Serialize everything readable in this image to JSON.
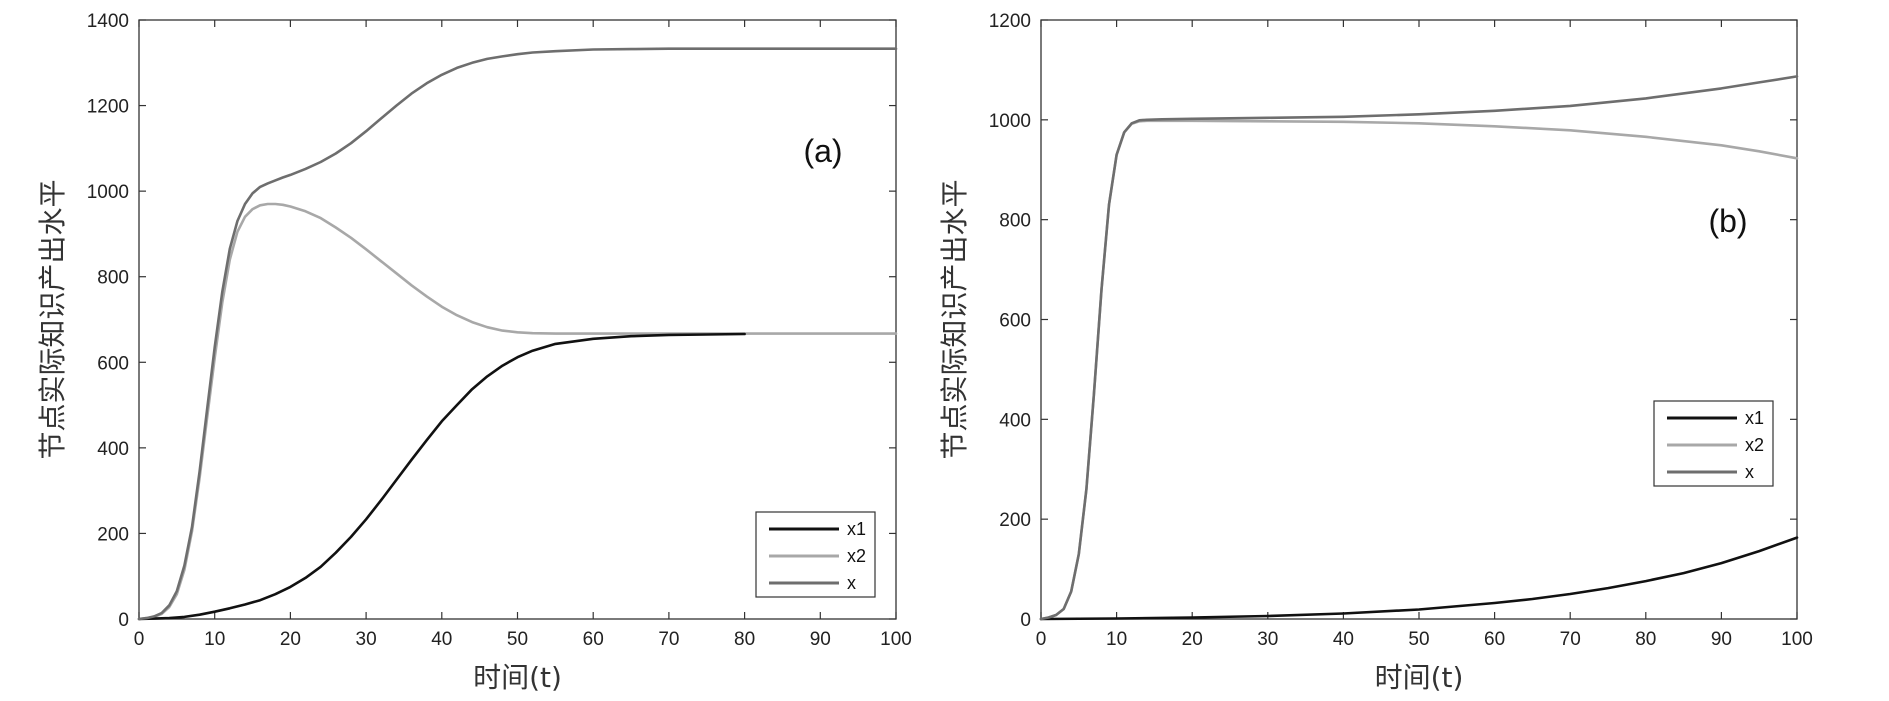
{
  "chart_data": [
    {
      "type": "line",
      "panel_label": "(a)",
      "xlabel": "时间(t)",
      "ylabel": "节点实际知识产出水平",
      "xlim": [
        0,
        100
      ],
      "ylim": [
        0,
        1400
      ],
      "xticks": [
        "0",
        "10",
        "20",
        "30",
        "40",
        "50",
        "60",
        "70",
        "80",
        "90",
        "100"
      ],
      "yticks": [
        "0",
        "200",
        "400",
        "600",
        "800",
        "1000",
        "1200",
        "1400"
      ],
      "grid": false,
      "legend_position": "bottom-right",
      "series": [
        {
          "name": "x1",
          "color": "#111111",
          "x": [
            0,
            2,
            4,
            6,
            8,
            10,
            12,
            14,
            16,
            18,
            20,
            22,
            24,
            26,
            28,
            30,
            32,
            34,
            36,
            38,
            40,
            42,
            44,
            46,
            48,
            50,
            52,
            55,
            60,
            65,
            70,
            75,
            80
          ],
          "y": [
            0,
            1,
            2,
            5,
            10,
            17,
            25,
            34,
            44,
            58,
            75,
            96,
            122,
            155,
            192,
            233,
            278,
            325,
            372,
            418,
            462,
            500,
            537,
            567,
            592,
            612,
            627,
            643,
            655,
            661,
            664,
            665,
            666
          ]
        },
        {
          "name": "x2",
          "color": "#a8a8a8",
          "x": [
            0,
            1,
            2,
            3,
            4,
            5,
            6,
            7,
            8,
            9,
            10,
            11,
            12,
            13,
            14,
            15,
            16,
            17,
            18,
            19,
            20,
            22,
            24,
            26,
            28,
            30,
            32,
            34,
            36,
            38,
            40,
            42,
            44,
            46,
            48,
            50,
            52,
            55,
            60,
            65,
            70,
            80,
            90,
            100
          ],
          "y": [
            0,
            2,
            5,
            12,
            28,
            58,
            115,
            205,
            330,
            470,
            610,
            740,
            840,
            905,
            940,
            958,
            967,
            970,
            970,
            968,
            964,
            953,
            937,
            915,
            891,
            864,
            836,
            808,
            780,
            754,
            730,
            710,
            694,
            682,
            674,
            670,
            668,
            667,
            667,
            667,
            667,
            667,
            667,
            667
          ]
        },
        {
          "name": "x",
          "color": "#6e6e6e",
          "x": [
            0,
            1,
            2,
            3,
            4,
            5,
            6,
            7,
            8,
            9,
            10,
            11,
            12,
            13,
            14,
            15,
            16,
            17,
            18,
            19,
            20,
            22,
            24,
            26,
            28,
            30,
            32,
            34,
            36,
            38,
            40,
            42,
            44,
            46,
            48,
            50,
            52,
            55,
            60,
            65,
            70,
            80,
            90,
            100
          ],
          "y": [
            0,
            2,
            6,
            14,
            32,
            65,
            125,
            215,
            345,
            490,
            635,
            765,
            865,
            930,
            970,
            995,
            1010,
            1018,
            1025,
            1032,
            1038,
            1052,
            1068,
            1088,
            1112,
            1140,
            1170,
            1200,
            1228,
            1252,
            1272,
            1288,
            1300,
            1309,
            1315,
            1320,
            1324,
            1327,
            1331,
            1332,
            1333,
            1333,
            1333,
            1333
          ]
        }
      ]
    },
    {
      "type": "line",
      "panel_label": "(b)",
      "xlabel": "时间(t)",
      "ylabel": "节点实际知识产出水平",
      "xlim": [
        0,
        100
      ],
      "ylim": [
        0,
        1200
      ],
      "xticks": [
        "0",
        "10",
        "20",
        "30",
        "40",
        "50",
        "60",
        "70",
        "80",
        "90",
        "100"
      ],
      "yticks": [
        "0",
        "200",
        "400",
        "600",
        "800",
        "1000",
        "1200"
      ],
      "grid": false,
      "legend_position": "center-right",
      "series": [
        {
          "name": "x1",
          "color": "#111111",
          "x": [
            0,
            10,
            20,
            30,
            40,
            50,
            60,
            65,
            70,
            75,
            80,
            85,
            90,
            95,
            100
          ],
          "y": [
            0,
            1,
            3,
            6,
            11,
            19,
            32,
            40,
            50,
            62,
            76,
            92,
            112,
            136,
            163
          ]
        },
        {
          "name": "x2",
          "color": "#a8a8a8",
          "x": [
            0,
            1,
            2,
            3,
            4,
            5,
            6,
            7,
            8,
            9,
            10,
            11,
            12,
            13,
            14,
            16,
            20,
            30,
            40,
            50,
            60,
            70,
            80,
            90,
            95,
            100
          ],
          "y": [
            0,
            3,
            8,
            20,
            55,
            130,
            260,
            450,
            660,
            830,
            930,
            975,
            992,
            997,
            998,
            998,
            998,
            997,
            996,
            993,
            987,
            979,
            966,
            949,
            937,
            923
          ]
        },
        {
          "name": "x",
          "color": "#6e6e6e",
          "x": [
            0,
            1,
            2,
            3,
            4,
            5,
            6,
            7,
            8,
            9,
            10,
            11,
            12,
            13,
            14,
            16,
            20,
            30,
            40,
            50,
            60,
            70,
            80,
            90,
            95,
            100
          ],
          "y": [
            0,
            3,
            8,
            20,
            55,
            130,
            260,
            450,
            660,
            830,
            930,
            975,
            993,
            999,
            1000,
            1001,
            1002,
            1004,
            1006,
            1011,
            1018,
            1028,
            1043,
            1063,
            1075,
            1087
          ]
        }
      ]
    }
  ]
}
